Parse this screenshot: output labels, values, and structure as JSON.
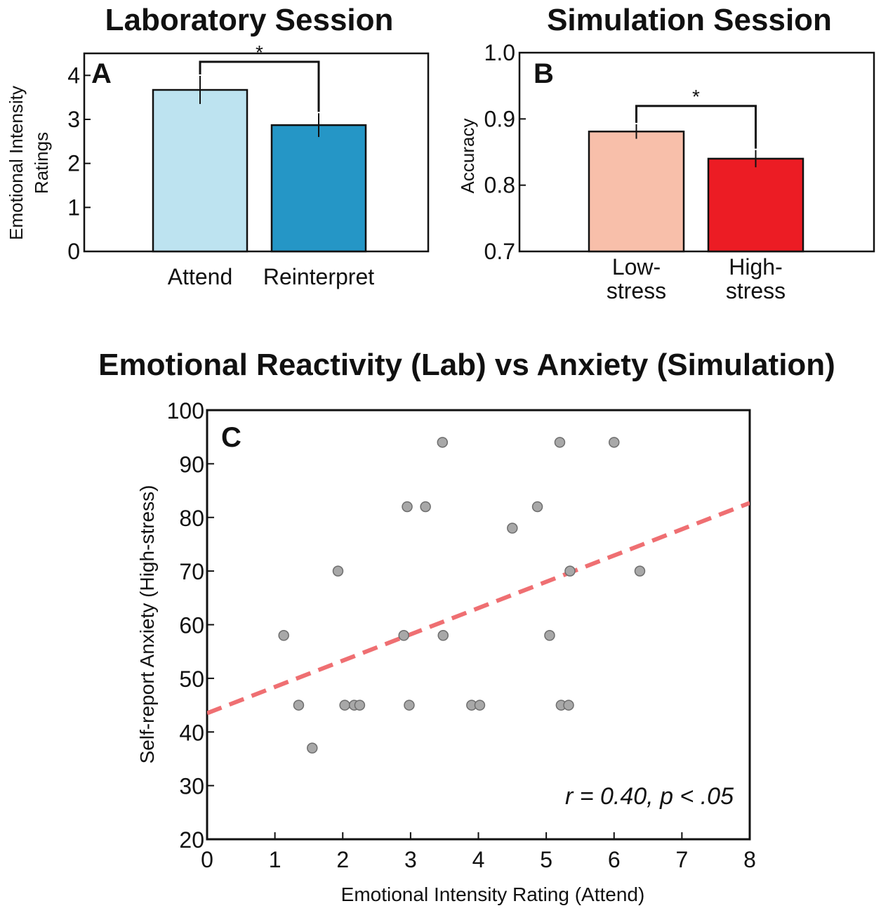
{
  "chart_data": [
    {
      "type": "bar",
      "panel": "A",
      "title": "Laboratory Session",
      "categories": [
        "Attend",
        "Reinterpret"
      ],
      "values": [
        3.67,
        2.87
      ],
      "errors": [
        0.32,
        0.27
      ],
      "colors": [
        "#bde3f0",
        "#2596c6"
      ],
      "ylabel_lines": [
        "Emotional Intensity",
        "Ratings"
      ],
      "ylim": [
        0,
        4.5
      ],
      "yticks": [
        "0",
        "1",
        "2",
        "3",
        "4"
      ],
      "yticks_values": [
        0,
        1,
        2,
        3,
        4
      ],
      "significance": "*"
    },
    {
      "type": "bar",
      "panel": "B",
      "title": "Simulation Session",
      "categories": [
        [
          "Low-",
          "stress"
        ],
        [
          "High-",
          "stress"
        ]
      ],
      "values": [
        0.881,
        0.84
      ],
      "errors": [
        0.011,
        0.013
      ],
      "colors": [
        "#f8bfaa",
        "#ec1c24"
      ],
      "ylabel": "Accuracy",
      "ylim": [
        0.7,
        1.0
      ],
      "yticks": [
        "0.7",
        "0.8",
        "0.9",
        "1.0"
      ],
      "yticks_values": [
        0.7,
        0.8,
        0.9,
        1.0
      ],
      "significance": "*"
    },
    {
      "type": "scatter",
      "panel": "C",
      "title": "Emotional Reactivity (Lab) vs Anxiety (Simulation)",
      "xlabel": "Emotional Intensity Rating (Attend)",
      "ylabel": "Self-report Anxiety (High-stress)",
      "xlim": [
        0,
        8
      ],
      "ylim": [
        20,
        100
      ],
      "xticks": [
        "0",
        "1",
        "2",
        "3",
        "4",
        "5",
        "6",
        "7",
        "8"
      ],
      "xticks_values": [
        0,
        1,
        2,
        3,
        4,
        5,
        6,
        7,
        8
      ],
      "yticks": [
        "20",
        "30",
        "40",
        "50",
        "60",
        "70",
        "80",
        "90",
        "100"
      ],
      "yticks_values": [
        20,
        30,
        40,
        50,
        60,
        70,
        80,
        90,
        100
      ],
      "points": [
        [
          1.13,
          58
        ],
        [
          1.35,
          45
        ],
        [
          1.55,
          37
        ],
        [
          1.93,
          70
        ],
        [
          2.03,
          45
        ],
        [
          2.17,
          45
        ],
        [
          2.25,
          45
        ],
        [
          2.9,
          58
        ],
        [
          2.95,
          82
        ],
        [
          2.98,
          45
        ],
        [
          3.22,
          82
        ],
        [
          3.47,
          94
        ],
        [
          3.48,
          58
        ],
        [
          3.9,
          45
        ],
        [
          4.02,
          45
        ],
        [
          4.5,
          78
        ],
        [
          4.87,
          82
        ],
        [
          5.05,
          58
        ],
        [
          5.2,
          94
        ],
        [
          5.22,
          45
        ],
        [
          5.33,
          45
        ],
        [
          5.35,
          70
        ],
        [
          6.0,
          94
        ],
        [
          6.38,
          70
        ]
      ],
      "trendline": {
        "intercept": 43.5,
        "slope": 4.9
      },
      "annotation": "r = 0.40, p < .05",
      "point_color": "#a8a8a8",
      "line_color": "#ef6f72"
    }
  ]
}
